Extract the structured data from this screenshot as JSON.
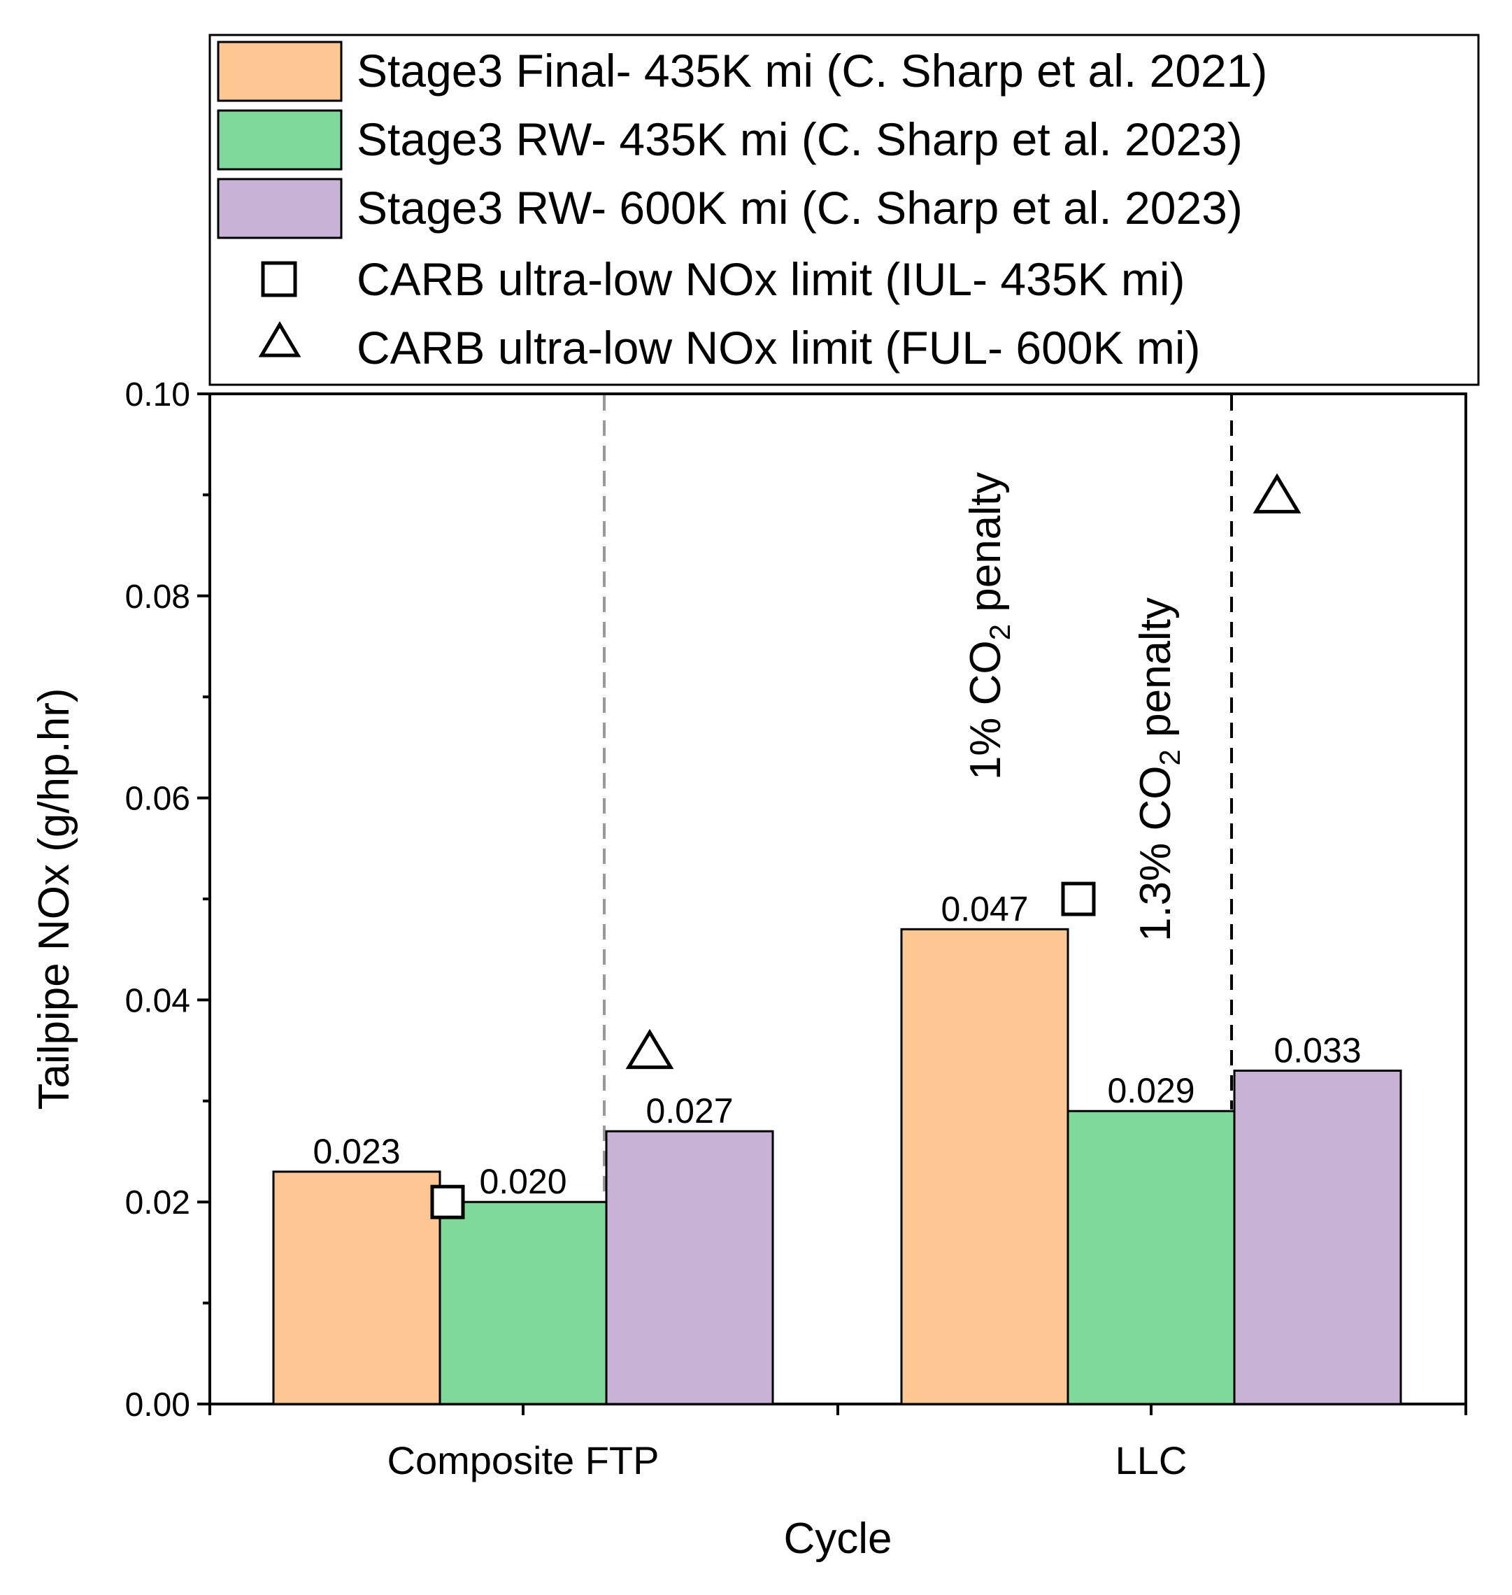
{
  "chart_data": {
    "type": "bar",
    "title": "",
    "xlabel": "Cycle",
    "ylabel": "Tailpipe NOx (g/hp.hr)",
    "ylim": [
      0,
      0.1
    ],
    "yticks": [
      "0.00",
      "0.02",
      "0.04",
      "0.06",
      "0.08",
      "0.10"
    ],
    "categories": [
      "Composite FTP",
      "LLC"
    ],
    "series": [
      {
        "name": "Stage3 Final- 435K mi (C. Sharp et al. 2021)",
        "color": "#FDC794",
        "values": [
          0.023,
          0.047
        ],
        "labels": [
          "0.023",
          "0.047"
        ]
      },
      {
        "name": "Stage3 RW- 435K mi (C. Sharp et al. 2023)",
        "color": "#7ED99B",
        "values": [
          0.02,
          0.029
        ],
        "labels": [
          "0.020",
          "0.029"
        ]
      },
      {
        "name": "Stage3 RW- 600K mi (C. Sharp et al. 2023)",
        "color": "#C8B2D6",
        "values": [
          0.027,
          0.033
        ],
        "labels": [
          "0.027",
          "0.033"
        ]
      }
    ],
    "limit_markers": [
      {
        "name": "CARB ultra-low NOx limit (IUL- 435K mi)",
        "shape": "square",
        "values": [
          0.02,
          0.05
        ]
      },
      {
        "name": "CARB ultra-low NOx limit (FUL- 600K mi)",
        "shape": "triangle",
        "values": [
          0.035,
          0.09
        ]
      }
    ],
    "annotations": [
      {
        "prefix": "1% CO",
        "sub": "2",
        "suffix": " penalty",
        "category": "LLC"
      },
      {
        "prefix": "1.3% CO",
        "sub": "2",
        "suffix": " penalty",
        "category": "LLC"
      }
    ],
    "legend_position": "top"
  }
}
